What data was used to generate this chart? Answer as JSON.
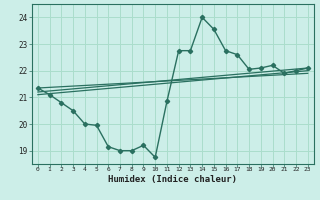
{
  "title": "",
  "xlabel": "Humidex (Indice chaleur)",
  "bg_color": "#cceee8",
  "grid_color": "#aaddcc",
  "line_color": "#2a7060",
  "xlim": [
    -0.5,
    23.5
  ],
  "ylim": [
    18.5,
    24.5
  ],
  "xticks": [
    0,
    1,
    2,
    3,
    4,
    5,
    6,
    7,
    8,
    9,
    10,
    11,
    12,
    13,
    14,
    15,
    16,
    17,
    18,
    19,
    20,
    21,
    22,
    23
  ],
  "yticks": [
    19,
    20,
    21,
    22,
    23,
    24
  ],
  "main_x": [
    0,
    1,
    2,
    3,
    4,
    5,
    6,
    7,
    8,
    9,
    10,
    11,
    12,
    13,
    14,
    15,
    16,
    17,
    18,
    19,
    20,
    21,
    22,
    23
  ],
  "main_y": [
    21.35,
    21.1,
    20.8,
    20.5,
    20.0,
    19.95,
    19.15,
    19.0,
    19.0,
    19.2,
    18.75,
    20.85,
    22.75,
    22.75,
    24.0,
    23.55,
    22.75,
    22.6,
    22.05,
    22.1,
    22.2,
    21.9,
    22.0,
    22.1
  ],
  "trend1_x": [
    0,
    23
  ],
  "trend1_y": [
    21.35,
    21.9
  ],
  "trend2_x": [
    0,
    23
  ],
  "trend2_y": [
    21.2,
    22.1
  ],
  "trend3_x": [
    0,
    23
  ],
  "trend3_y": [
    21.1,
    22.0
  ]
}
